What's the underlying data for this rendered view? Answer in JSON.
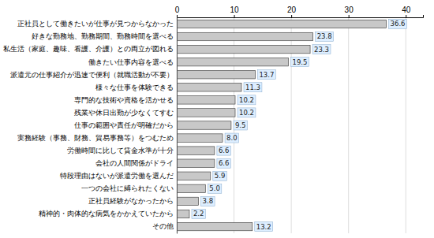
{
  "chart_data": {
    "type": "bar",
    "orientation": "horizontal",
    "categories": [
      "正社員として働きたいが仕事が見つからなかった",
      "好きな勤務地、勤務期間、勤務時間を選べる",
      "私生活（家庭、趣味、看護、介護）との両立が図れる",
      "働きたい仕事内容を選べる",
      "派遣元の仕事紹介が迅速で便利（就職活動が不要）",
      "様々な仕事を体験できる",
      "専門的な技術や資格を活かせる",
      "残業や休日出勤が少なくてすむ",
      "仕事の範囲や責任が明確だから",
      "実務経験（事務、財務、貿易事務等）をつむため",
      "労働時間に比して賃金水準が十分",
      "会社の人間関係がドライ",
      "特段理由はないが派遣労働を選んだ",
      "一つの会社に縛られたくない",
      "正社員経験がなかったから",
      "精神的・肉体的な病気をかかえていたから",
      "その他"
    ],
    "values": [
      36.6,
      23.8,
      23.3,
      19.5,
      13.7,
      11.3,
      10.2,
      10.2,
      9.5,
      8.0,
      6.6,
      6.6,
      5.9,
      5.0,
      3.8,
      2.2,
      13.2
    ],
    "value_labels": [
      "36.6",
      "23.8",
      "23.3",
      "19.5",
      "13.7",
      "11.3",
      "10.2",
      "10.2",
      "9.5",
      "8.0",
      "6.6",
      "6.6",
      "5.9",
      "5.0",
      "3.8",
      "2.2",
      "13.2"
    ],
    "color": "#c8c8c8",
    "xlim": [
      0,
      43
    ],
    "xticks": [
      0,
      10,
      20,
      30,
      40
    ],
    "grid": true,
    "data_labels": true
  }
}
